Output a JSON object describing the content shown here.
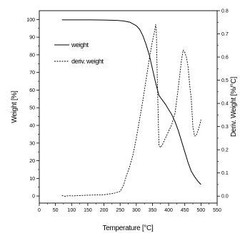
{
  "chart_data": {
    "type": "line",
    "xlabel": "Temperature [°C]",
    "ylabel_left": "Weight [%]",
    "ylabel_right": "Deriv. Weight [%/°C]",
    "xlim": [
      0,
      550
    ],
    "ylim_left": [
      -4,
      105
    ],
    "ylim_right": [
      -0.03,
      0.8
    ],
    "x_ticks": [
      "0",
      "50",
      "100",
      "150",
      "200",
      "250",
      "300",
      "350",
      "400",
      "450",
      "500",
      "550"
    ],
    "y_left_ticks": [
      "0",
      "10",
      "20",
      "30",
      "40",
      "50",
      "60",
      "70",
      "80",
      "90",
      "100"
    ],
    "y_right_ticks": [
      "0.0",
      "0.1",
      "0.2",
      "0.3",
      "0.4",
      "0.5",
      "0.6",
      "0.7",
      "0.8"
    ],
    "grid": false,
    "legend_position": "top-left",
    "series": [
      {
        "name": "weight",
        "axis": "left",
        "style": "solid",
        "x": [
          70,
          100,
          150,
          200,
          240,
          260,
          280,
          300,
          310,
          320,
          330,
          340,
          350,
          360,
          370,
          380,
          390,
          400,
          410,
          420,
          430,
          440,
          450,
          460,
          470,
          480,
          490,
          500
        ],
        "y": [
          99.8,
          99.8,
          99.8,
          99.7,
          99.5,
          99.2,
          98.5,
          96.5,
          94.5,
          91,
          86,
          80,
          72,
          64,
          57,
          54.5,
          52,
          49,
          46,
          42,
          37,
          31,
          25,
          19,
          14,
          11,
          8.5,
          6.5
        ]
      },
      {
        "name": "deriv. weight",
        "axis": "right",
        "style": "dashed",
        "x": [
          70,
          80,
          90,
          100,
          150,
          200,
          230,
          250,
          260,
          270,
          280,
          290,
          300,
          310,
          320,
          330,
          340,
          350,
          355,
          360,
          362,
          365,
          370,
          375,
          380,
          390,
          400,
          410,
          420,
          430,
          440,
          445,
          450,
          455,
          460,
          465,
          470,
          475,
          480,
          485,
          490,
          495,
          500
        ],
        "y": [
          0.003,
          -0.001,
          0.002,
          0.001,
          0.004,
          0.006,
          0.012,
          0.02,
          0.045,
          0.09,
          0.13,
          0.18,
          0.25,
          0.33,
          0.41,
          0.5,
          0.59,
          0.67,
          0.7,
          0.74,
          0.71,
          0.5,
          0.22,
          0.21,
          0.22,
          0.25,
          0.28,
          0.31,
          0.36,
          0.47,
          0.59,
          0.63,
          0.62,
          0.6,
          0.56,
          0.48,
          0.42,
          0.3,
          0.26,
          0.26,
          0.28,
          0.3,
          0.33
        ]
      }
    ]
  }
}
